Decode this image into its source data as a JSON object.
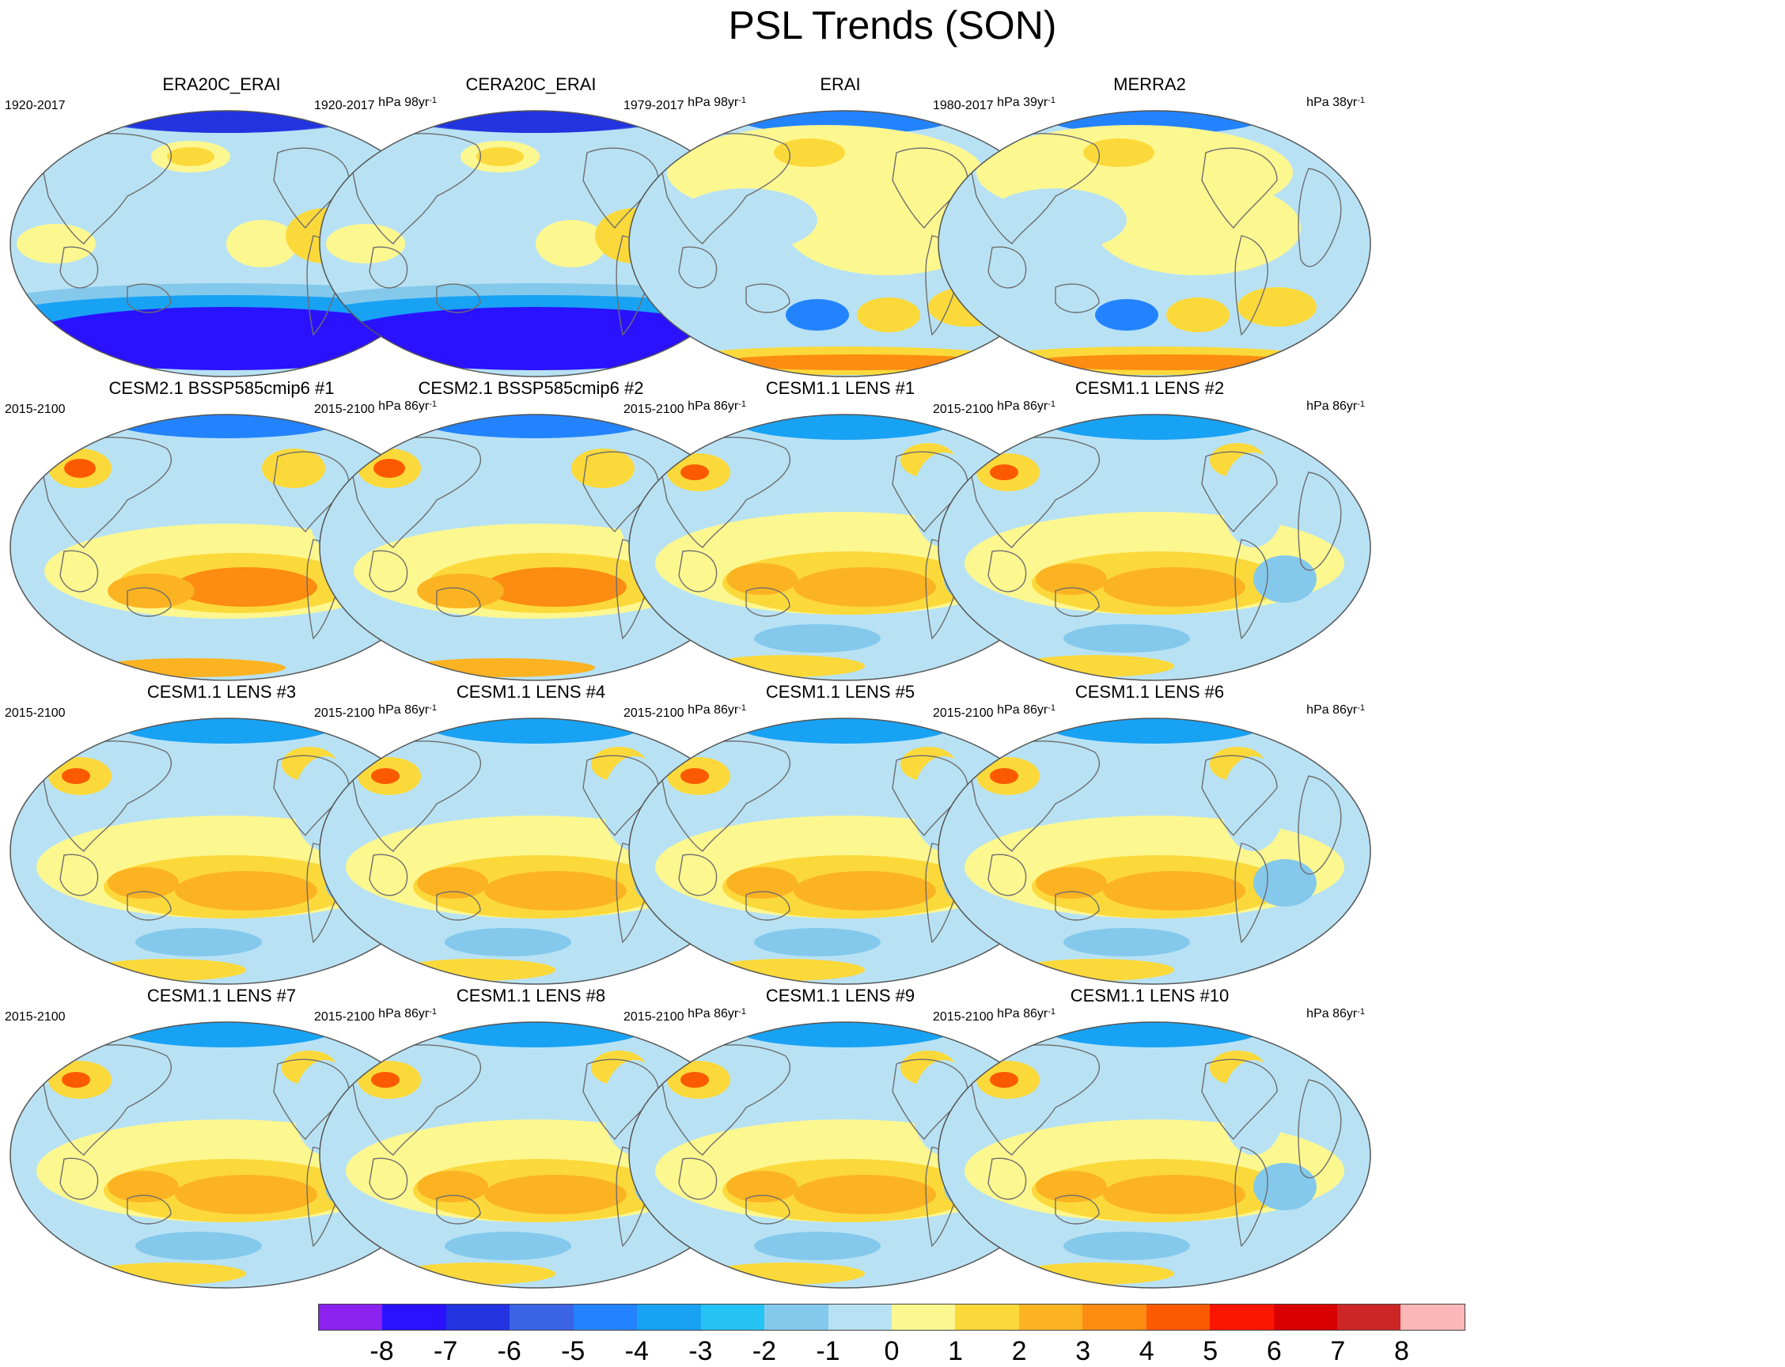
{
  "figure": {
    "title": "PSL Trends (SON)"
  },
  "panels": [
    {
      "title": "ERA20C_ERAI",
      "period": "1920-2017",
      "units_value": "hPa 98yr",
      "units_exp": "-1",
      "pattern": "reanalysis_long"
    },
    {
      "title": "CERA20C_ERAI",
      "period": "1920-2017",
      "units_value": "hPa 98yr",
      "units_exp": "-1",
      "pattern": "reanalysis_long"
    },
    {
      "title": "ERAI",
      "period": "1979-2017",
      "units_value": "hPa 39yr",
      "units_exp": "-1",
      "pattern": "reanalysis_short"
    },
    {
      "title": "MERRA2",
      "period": "1980-2017",
      "units_value": "hPa 38yr",
      "units_exp": "-1",
      "pattern": "reanalysis_short"
    },
    {
      "title": "CESM2.1 BSSP585cmip6 #1",
      "period": "2015-2100",
      "units_value": "hPa 86yr",
      "units_exp": "-1",
      "pattern": "model_strong"
    },
    {
      "title": "CESM2.1 BSSP585cmip6 #2",
      "period": "2015-2100",
      "units_value": "hPa 86yr",
      "units_exp": "-1",
      "pattern": "model_strong"
    },
    {
      "title": "CESM1.1 LENS #1",
      "period": "2015-2100",
      "units_value": "hPa 86yr",
      "units_exp": "-1",
      "pattern": "model"
    },
    {
      "title": "CESM1.1 LENS #2",
      "period": "2015-2100",
      "units_value": "hPa 86yr",
      "units_exp": "-1",
      "pattern": "model"
    },
    {
      "title": "CESM1.1 LENS #3",
      "period": "2015-2100",
      "units_value": "hPa 86yr",
      "units_exp": "-1",
      "pattern": "model"
    },
    {
      "title": "CESM1.1 LENS #4",
      "period": "2015-2100",
      "units_value": "hPa 86yr",
      "units_exp": "-1",
      "pattern": "model"
    },
    {
      "title": "CESM1.1 LENS #5",
      "period": "2015-2100",
      "units_value": "hPa 86yr",
      "units_exp": "-1",
      "pattern": "model"
    },
    {
      "title": "CESM1.1 LENS #6",
      "period": "2015-2100",
      "units_value": "hPa 86yr",
      "units_exp": "-1",
      "pattern": "model"
    },
    {
      "title": "CESM1.1 LENS #7",
      "period": "2015-2100",
      "units_value": "hPa 86yr",
      "units_exp": "-1",
      "pattern": "model"
    },
    {
      "title": "CESM1.1 LENS #8",
      "period": "2015-2100",
      "units_value": "hPa 86yr",
      "units_exp": "-1",
      "pattern": "model"
    },
    {
      "title": "CESM1.1 LENS #9",
      "period": "2015-2100",
      "units_value": "hPa 86yr",
      "units_exp": "-1",
      "pattern": "model"
    },
    {
      "title": "CESM1.1 LENS #10",
      "period": "2015-2100",
      "units_value": "hPa 86yr",
      "units_exp": "-1",
      "pattern": "model"
    }
  ],
  "colorbar": {
    "colors": [
      "#8b22f0",
      "#2a12ff",
      "#2233e0",
      "#3b63e6",
      "#2383ff",
      "#18a2f4",
      "#25c2f4",
      "#84c9ec",
      "#b8e2f4",
      "#fdf790",
      "#fcd93a",
      "#fcb322",
      "#fc8c12",
      "#fc5a00",
      "#fc1500",
      "#d80000",
      "#cc2626",
      "#fcb8b8"
    ],
    "labels": [
      "-8",
      "-7",
      "-6",
      "-5",
      "-4",
      "-3",
      "-2",
      "-1",
      "0",
      "1",
      "2",
      "3",
      "4",
      "5",
      "6",
      "7",
      "8"
    ]
  },
  "map_colors": {
    "land_outline": "#6e6e6e",
    "globe_outline": "#555555"
  }
}
